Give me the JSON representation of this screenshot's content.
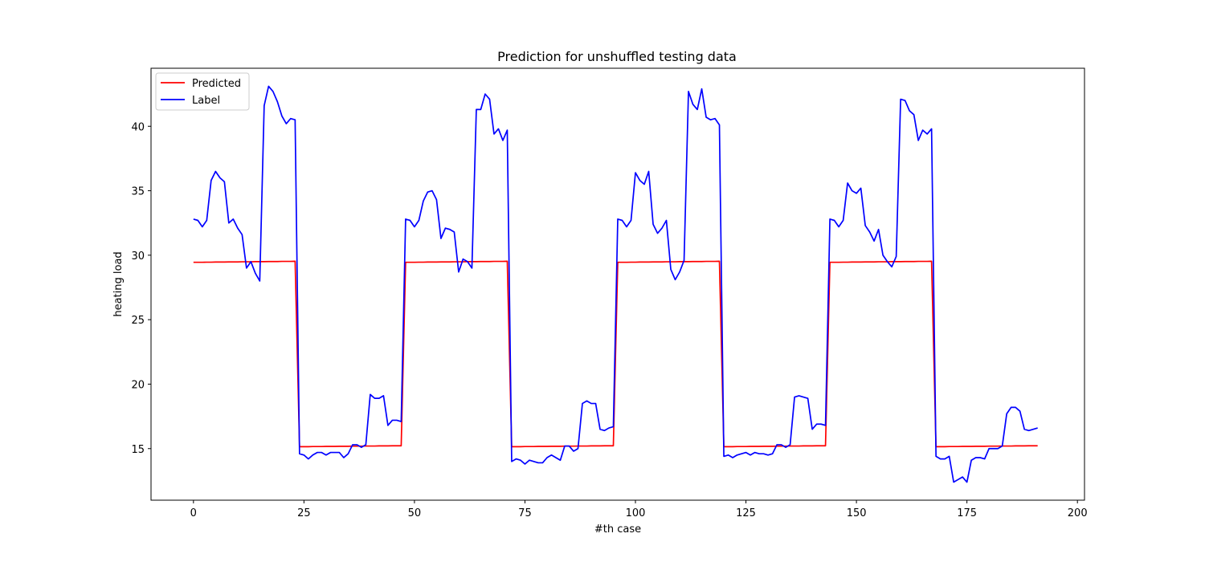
{
  "chart_data": {
    "type": "line",
    "title": "Prediction for unshuffled testing data",
    "xlabel": "#th case",
    "ylabel": "heating load",
    "xlim": [
      -9.6,
      201.6
    ],
    "ylim": [
      11.0,
      44.5
    ],
    "xticks": [
      0,
      25,
      50,
      75,
      100,
      125,
      150,
      175,
      200
    ],
    "yticks": [
      15,
      20,
      25,
      30,
      35,
      40
    ],
    "grid": false,
    "legend": "top-left",
    "series": [
      {
        "name": "Predicted",
        "color": "#ff0000",
        "values": [
          29.45,
          29.45,
          29.45,
          29.46,
          29.46,
          29.47,
          29.47,
          29.47,
          29.48,
          29.48,
          29.48,
          29.49,
          29.49,
          29.49,
          29.5,
          29.5,
          29.5,
          29.51,
          29.51,
          29.51,
          29.52,
          29.52,
          29.52,
          29.53,
          15.15,
          15.15,
          15.15,
          15.16,
          15.16,
          15.16,
          15.17,
          15.17,
          15.17,
          15.18,
          15.18,
          15.18,
          15.19,
          15.19,
          15.19,
          15.2,
          15.2,
          15.2,
          15.21,
          15.21,
          15.21,
          15.22,
          15.22,
          15.22,
          29.45,
          29.45,
          29.45,
          29.46,
          29.46,
          29.47,
          29.47,
          29.47,
          29.48,
          29.48,
          29.48,
          29.49,
          29.49,
          29.49,
          29.5,
          29.5,
          29.5,
          29.51,
          29.51,
          29.51,
          29.52,
          29.52,
          29.52,
          29.53,
          15.15,
          15.15,
          15.15,
          15.16,
          15.16,
          15.16,
          15.17,
          15.17,
          15.17,
          15.18,
          15.18,
          15.18,
          15.19,
          15.19,
          15.19,
          15.2,
          15.2,
          15.2,
          15.21,
          15.21,
          15.21,
          15.22,
          15.22,
          15.22,
          29.45,
          29.45,
          29.45,
          29.46,
          29.46,
          29.47,
          29.47,
          29.47,
          29.48,
          29.48,
          29.48,
          29.49,
          29.49,
          29.49,
          29.5,
          29.5,
          29.5,
          29.51,
          29.51,
          29.51,
          29.52,
          29.52,
          29.52,
          29.53,
          15.15,
          15.15,
          15.15,
          15.16,
          15.16,
          15.16,
          15.17,
          15.17,
          15.17,
          15.18,
          15.18,
          15.18,
          15.19,
          15.19,
          15.19,
          15.2,
          15.2,
          15.2,
          15.21,
          15.21,
          15.21,
          15.22,
          15.22,
          15.22,
          29.45,
          29.45,
          29.45,
          29.46,
          29.46,
          29.47,
          29.47,
          29.47,
          29.48,
          29.48,
          29.48,
          29.49,
          29.49,
          29.49,
          29.5,
          29.5,
          29.5,
          29.51,
          29.51,
          29.51,
          29.52,
          29.52,
          29.52,
          29.53,
          15.15,
          15.15,
          15.15,
          15.16,
          15.16,
          15.16,
          15.17,
          15.17,
          15.17,
          15.18,
          15.18,
          15.18,
          15.19,
          15.19,
          15.19,
          15.2,
          15.2,
          15.2,
          15.21,
          15.21,
          15.21,
          15.22,
          15.22,
          15.22
        ]
      },
      {
        "name": "Label",
        "color": "#0000ff",
        "values": [
          32.8,
          32.7,
          32.2,
          32.7,
          35.8,
          36.5,
          36.0,
          35.7,
          32.5,
          32.8,
          32.1,
          31.6,
          29.0,
          29.5,
          28.6,
          28.0,
          41.6,
          43.1,
          42.7,
          41.9,
          40.8,
          40.2,
          40.6,
          40.5,
          14.6,
          14.5,
          14.2,
          14.5,
          14.7,
          14.7,
          14.5,
          14.7,
          14.7,
          14.7,
          14.3,
          14.6,
          15.3,
          15.3,
          15.1,
          15.3,
          19.2,
          18.9,
          18.9,
          19.1,
          16.8,
          17.2,
          17.2,
          17.1,
          32.8,
          32.7,
          32.2,
          32.7,
          34.2,
          34.9,
          35.0,
          34.3,
          31.3,
          32.1,
          32.0,
          31.8,
          28.7,
          29.7,
          29.5,
          29.0,
          41.3,
          41.3,
          42.5,
          42.1,
          39.4,
          39.8,
          38.9,
          39.7,
          14.0,
          14.2,
          14.1,
          13.8,
          14.1,
          14.0,
          13.9,
          13.9,
          14.3,
          14.5,
          14.3,
          14.1,
          15.2,
          15.2,
          14.8,
          15.0,
          18.5,
          18.7,
          18.5,
          18.5,
          16.5,
          16.4,
          16.6,
          16.7,
          32.8,
          32.7,
          32.2,
          32.7,
          36.4,
          35.8,
          35.5,
          36.5,
          32.4,
          31.7,
          32.1,
          32.7,
          28.9,
          28.1,
          28.7,
          29.6,
          42.7,
          41.7,
          41.3,
          42.9,
          40.7,
          40.5,
          40.6,
          40.1,
          14.4,
          14.5,
          14.3,
          14.5,
          14.6,
          14.7,
          14.5,
          14.7,
          14.6,
          14.6,
          14.5,
          14.6,
          15.3,
          15.3,
          15.1,
          15.3,
          19.0,
          19.1,
          19.0,
          18.9,
          16.5,
          16.9,
          16.9,
          16.8,
          32.8,
          32.7,
          32.2,
          32.7,
          35.6,
          35.0,
          34.8,
          35.2,
          32.3,
          31.8,
          31.1,
          32.0,
          30.0,
          29.5,
          29.1,
          29.9,
          42.1,
          42.0,
          41.2,
          40.9,
          38.9,
          39.7,
          39.4,
          39.8,
          14.4,
          14.2,
          14.2,
          14.4,
          12.4,
          12.6,
          12.8,
          12.4,
          14.1,
          14.3,
          14.3,
          14.2,
          15.0,
          15.0,
          15.0,
          15.2,
          17.7,
          18.2,
          18.2,
          17.9,
          16.5,
          16.4,
          16.5,
          16.6
        ]
      }
    ]
  }
}
